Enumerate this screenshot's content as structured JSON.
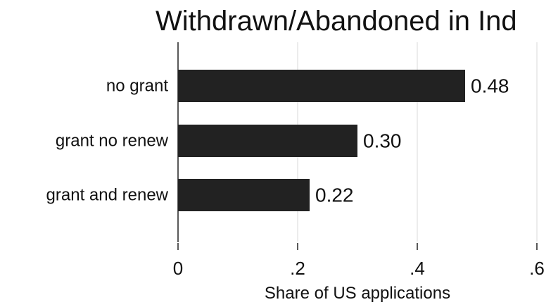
{
  "chart_data": {
    "type": "bar",
    "orientation": "horizontal",
    "title": "Withdrawn/Abandoned in Ind",
    "xlabel": "Share of US applications",
    "ylabel": "",
    "categories": [
      "no grant",
      "grant no renew",
      "grant and renew"
    ],
    "values": [
      0.48,
      0.3,
      0.22
    ],
    "value_labels": [
      "0.48",
      "0.30",
      "0.22"
    ],
    "xlim": [
      0,
      0.6
    ],
    "xticks": [
      0,
      0.2,
      0.4,
      0.6
    ],
    "xtick_labels": [
      "0",
      ".2",
      ".4",
      ".6"
    ],
    "grid": true,
    "bar_color": "#222222",
    "grid_color": "#e6e6e6"
  }
}
